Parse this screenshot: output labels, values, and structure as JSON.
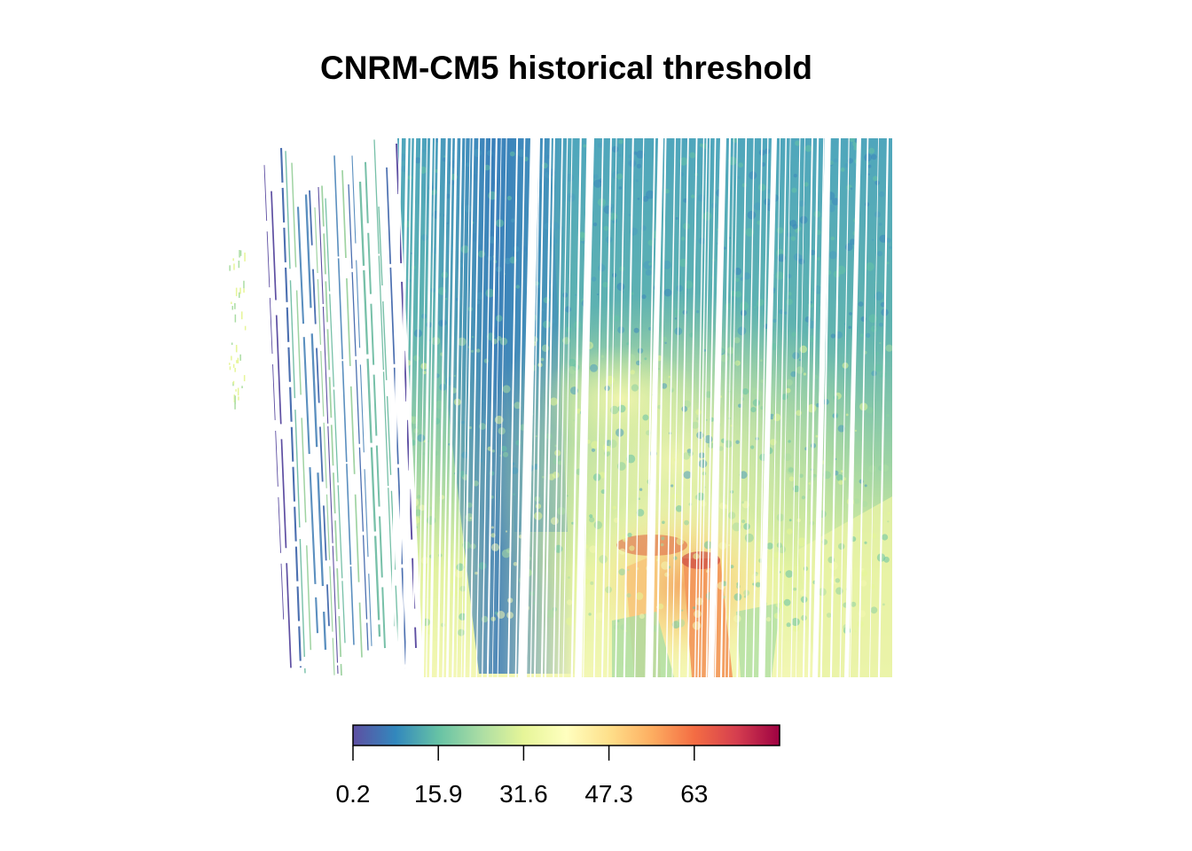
{
  "title": "CNRM-CM5 historical threshold",
  "legend": {
    "min": 0.2,
    "max": 78.7,
    "ticks": [
      {
        "label": "0.2",
        "value": 0.2
      },
      {
        "label": "15.9",
        "value": 15.9
      },
      {
        "label": "31.6",
        "value": 31.6
      },
      {
        "label": "47.3",
        "value": 47.3
      },
      {
        "label": "63",
        "value": 63
      }
    ],
    "palette": [
      "#5E4FA2",
      "#3288BD",
      "#66C2A5",
      "#ABDDA4",
      "#E6F598",
      "#FFFFBF",
      "#FEE08B",
      "#FDAE61",
      "#F46D43",
      "#D53E4F",
      "#9E0142"
    ],
    "palette_name": "Spectral (reversed)"
  },
  "colors": {
    "background": "#ffffff",
    "title": "#000000"
  }
}
